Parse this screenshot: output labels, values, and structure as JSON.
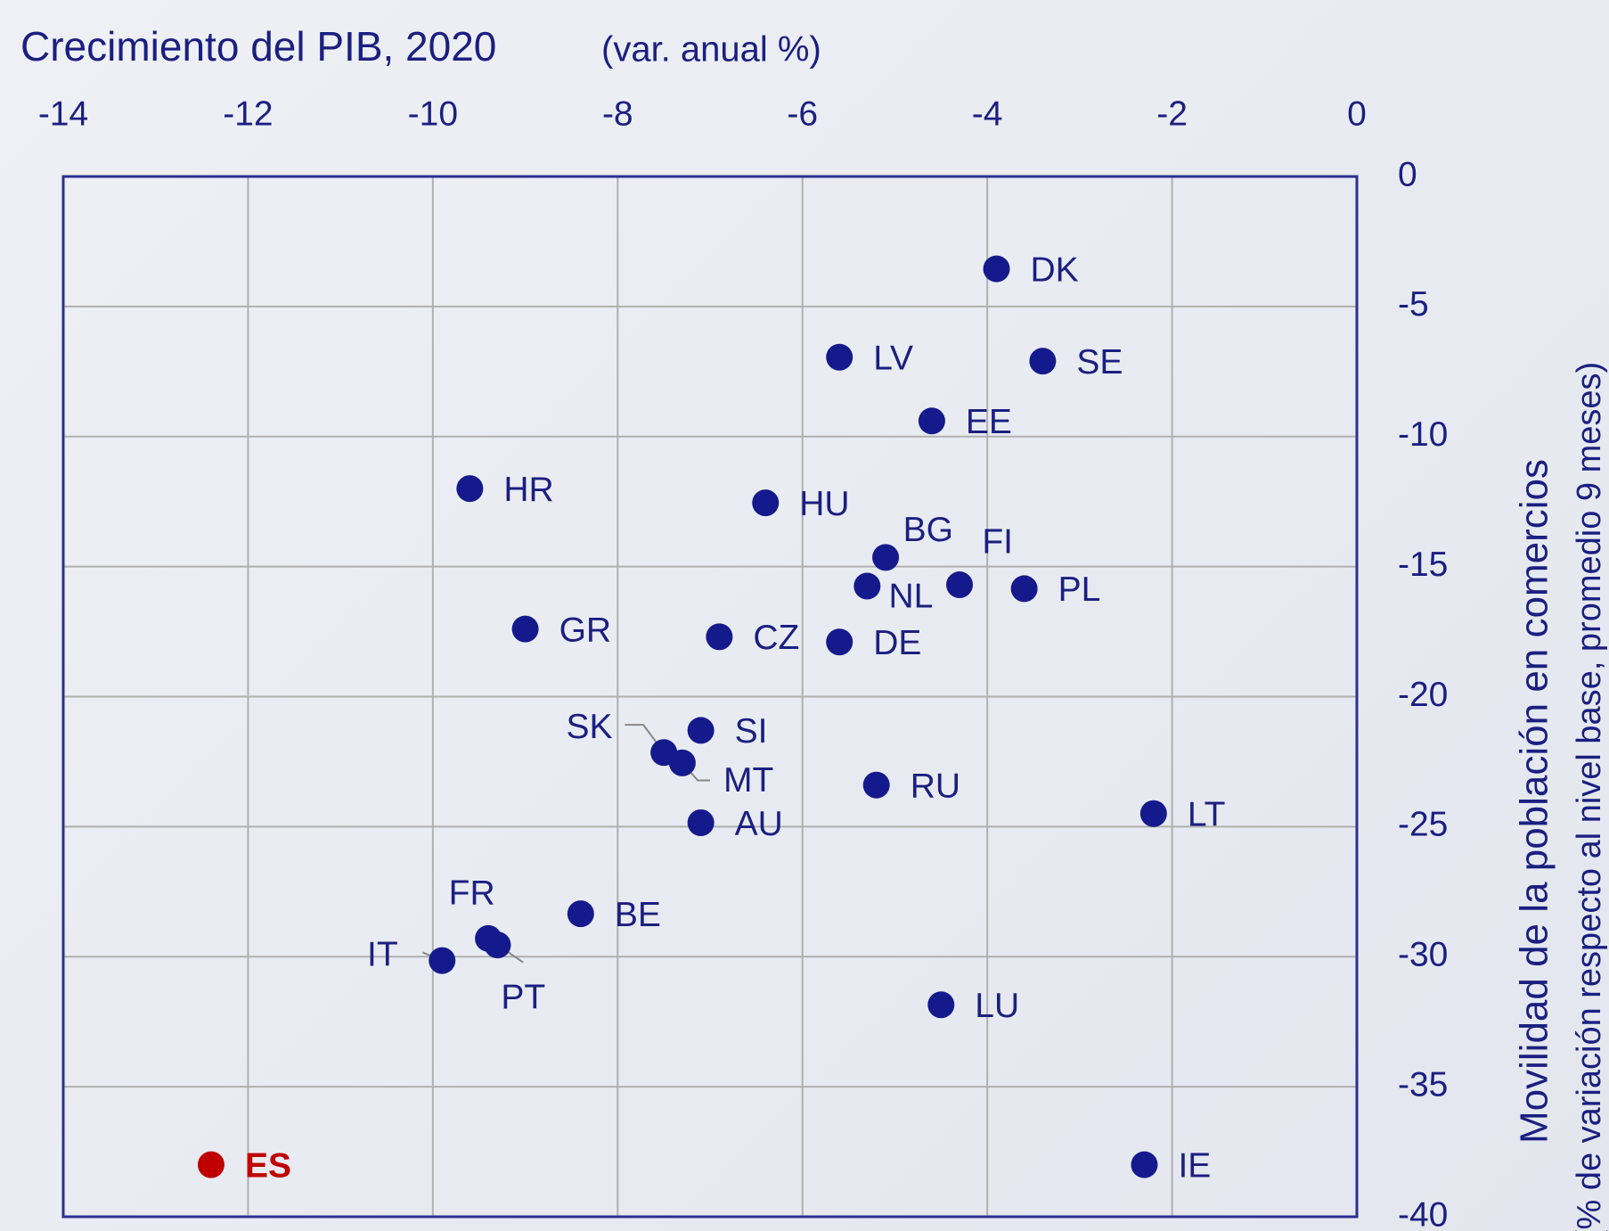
{
  "chart_data": {
    "type": "scatter",
    "title": "Crecimiento del PIB, 2020",
    "subtitle": "(var. anual %)",
    "ylabel": "Movilidad de la población en comercios",
    "ylabel2": "(% de variación respecto al nivel base, promedio 9 meses)",
    "labels": [
      "DK",
      "LV",
      "SE",
      "EE",
      "HR",
      "HU",
      "BG",
      "NL",
      "FI",
      "PL",
      "GR",
      "CZ",
      "DE",
      "SI",
      "SK",
      "MT",
      "RU",
      "AU",
      "LT",
      "BE",
      "FR",
      "PT",
      "IT",
      "LU",
      "ES",
      "IE"
    ],
    "x": [
      -3.9,
      -5.6,
      -3.4,
      -4.6,
      -9.6,
      -6.4,
      -5.1,
      -5.3,
      -4.3,
      -3.6,
      -9.0,
      -6.9,
      -5.6,
      -7.1,
      -7.5,
      -7.3,
      -5.2,
      -7.1,
      -2.2,
      -8.4,
      -9.4,
      -9.3,
      -9.9,
      -4.5,
      -12.4,
      -2.3
    ],
    "values": [
      -3.55,
      -6.95,
      -7.1,
      -9.4,
      -12.0,
      -12.55,
      -14.65,
      -15.75,
      -15.7,
      -15.85,
      -17.4,
      -17.7,
      -17.9,
      -21.3,
      -22.15,
      -22.55,
      -23.4,
      -24.85,
      -24.5,
      -28.35,
      -29.3,
      -29.55,
      -30.15,
      -31.85,
      -38.0,
      -38.0
    ],
    "colors": [
      "#141a8c",
      "#141a8c",
      "#141a8c",
      "#141a8c",
      "#141a8c",
      "#141a8c",
      "#141a8c",
      "#141a8c",
      "#141a8c",
      "#141a8c",
      "#141a8c",
      "#141a8c",
      "#141a8c",
      "#141a8c",
      "#141a8c",
      "#141a8c",
      "#141a8c",
      "#141a8c",
      "#141a8c",
      "#141a8c",
      "#141a8c",
      "#141a8c",
      "#141a8c",
      "#141a8c",
      "#c00000",
      "#141a8c"
    ],
    "xlim": [
      -14,
      0
    ],
    "xticks": [
      -14,
      -12,
      -10,
      -8,
      -6,
      -4,
      -2,
      0
    ],
    "ylim": [
      -40,
      0
    ],
    "yticks": [
      0,
      -5,
      -10,
      -15,
      -20,
      -25,
      -30,
      -35,
      -40
    ],
    "grid": true
  }
}
